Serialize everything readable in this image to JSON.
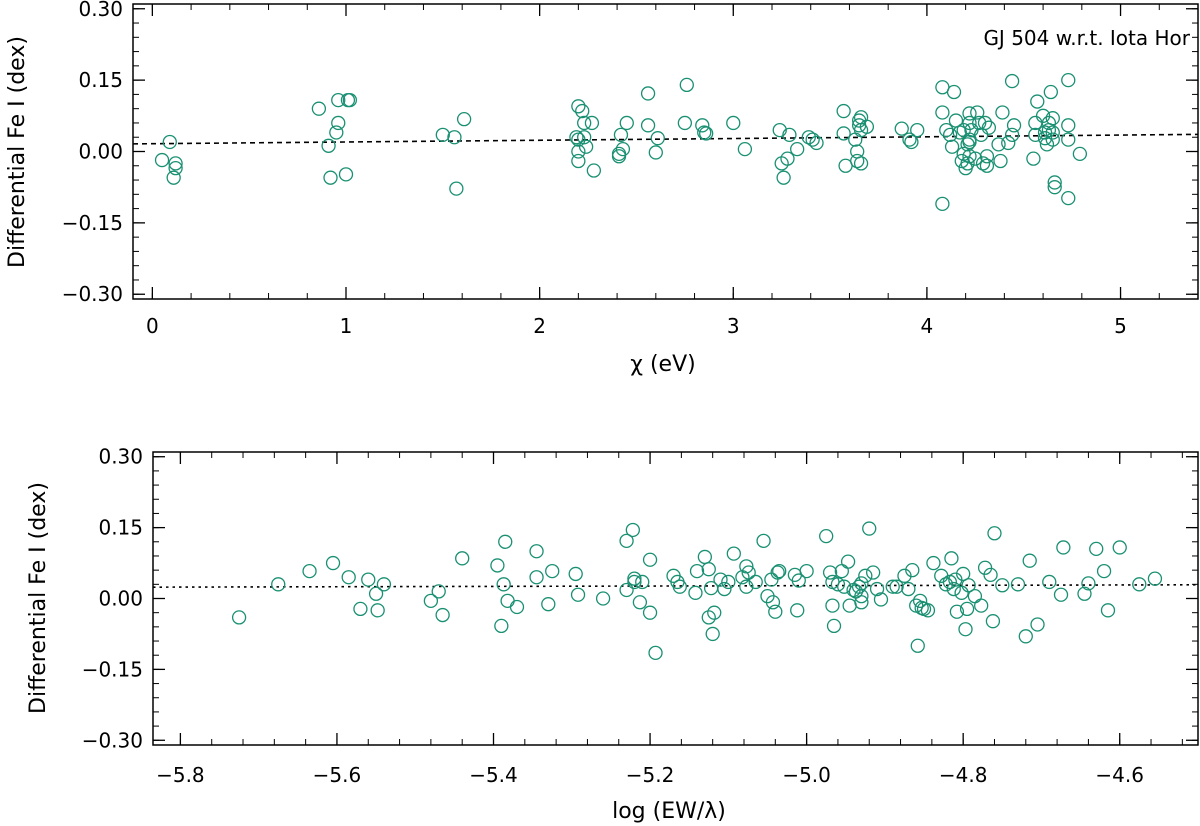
{
  "chart_data": [
    {
      "type": "scatter",
      "xlabel": "χ (eV)",
      "ylabel": "Differential Fe I (dex)",
      "annotation": "GJ 504 w.r.t. Iota Hor",
      "xlim": [
        -0.1,
        5.4
      ],
      "ylim": [
        -0.31,
        0.31
      ],
      "x_ticks": [
        "0",
        "1",
        "2",
        "3",
        "4",
        "5"
      ],
      "y_ticks": [
        "0.30",
        "0.15",
        "0.00",
        "−0.15",
        "−0.30"
      ],
      "marker_color": "#1a9073",
      "trend": {
        "style": "dashed",
        "x": [
          -0.1,
          5.4
        ],
        "y": [
          0.016,
          0.036
        ]
      },
      "series": [
        {
          "points": [
            [
              0.05,
              -0.018
            ],
            [
              0.09,
              0.02
            ],
            [
              0.11,
              -0.055
            ],
            [
              0.12,
              -0.025
            ],
            [
              0.12,
              -0.035
            ],
            [
              0.86,
              0.09
            ],
            [
              0.91,
              0.012
            ],
            [
              0.92,
              -0.055
            ],
            [
              0.95,
              0.04
            ],
            [
              0.96,
              0.06
            ],
            [
              0.96,
              0.108
            ],
            [
              1.0,
              -0.048
            ],
            [
              1.01,
              0.108
            ],
            [
              1.02,
              0.108
            ],
            [
              1.5,
              0.035
            ],
            [
              1.56,
              0.03
            ],
            [
              1.57,
              -0.078
            ],
            [
              1.61,
              0.068
            ],
            [
              2.19,
              0.03
            ],
            [
              2.2,
              0.025
            ],
            [
              2.2,
              0.0
            ],
            [
              2.2,
              -0.02
            ],
            [
              2.2,
              0.095
            ],
            [
              2.22,
              0.085
            ],
            [
              2.23,
              0.06
            ],
            [
              2.23,
              0.03
            ],
            [
              2.24,
              0.01
            ],
            [
              2.27,
              0.06
            ],
            [
              2.28,
              -0.04
            ],
            [
              2.41,
              -0.005
            ],
            [
              2.41,
              -0.01
            ],
            [
              2.42,
              0.035
            ],
            [
              2.43,
              0.005
            ],
            [
              2.45,
              0.06
            ],
            [
              2.56,
              0.055
            ],
            [
              2.56,
              0.122
            ],
            [
              2.6,
              -0.002
            ],
            [
              2.61,
              0.028
            ],
            [
              2.75,
              0.06
            ],
            [
              2.76,
              0.14
            ],
            [
              2.84,
              0.055
            ],
            [
              2.85,
              0.04
            ],
            [
              2.86,
              0.038
            ],
            [
              3.0,
              0.06
            ],
            [
              3.06,
              0.005
            ],
            [
              3.24,
              0.045
            ],
            [
              3.25,
              -0.025
            ],
            [
              3.26,
              -0.055
            ],
            [
              3.28,
              -0.015
            ],
            [
              3.29,
              0.035
            ],
            [
              3.33,
              0.005
            ],
            [
              3.39,
              0.03
            ],
            [
              3.41,
              0.025
            ],
            [
              3.43,
              0.018
            ],
            [
              3.57,
              0.085
            ],
            [
              3.57,
              0.038
            ],
            [
              3.58,
              -0.03
            ],
            [
              3.63,
              0.025
            ],
            [
              3.64,
              0.0
            ],
            [
              3.64,
              -0.02
            ],
            [
              3.65,
              0.065
            ],
            [
              3.65,
              0.055
            ],
            [
              3.66,
              0.072
            ],
            [
              3.66,
              0.045
            ],
            [
              3.66,
              -0.025
            ],
            [
              3.69,
              0.052
            ],
            [
              3.87,
              0.048
            ],
            [
              3.91,
              0.025
            ],
            [
              3.92,
              0.02
            ],
            [
              3.95,
              0.045
            ],
            [
              4.08,
              0.135
            ],
            [
              4.08,
              -0.11
            ],
            [
              4.08,
              0.082
            ],
            [
              4.1,
              0.045
            ],
            [
              4.12,
              0.035
            ],
            [
              4.13,
              0.01
            ],
            [
              4.14,
              0.125
            ],
            [
              4.15,
              0.065
            ],
            [
              4.17,
              0.04
            ],
            [
              4.18,
              -0.02
            ],
            [
              4.19,
              0.045
            ],
            [
              4.19,
              -0.005
            ],
            [
              4.2,
              -0.035
            ],
            [
              4.21,
              -0.025
            ],
            [
              4.21,
              0.015
            ],
            [
              4.22,
              0.08
            ],
            [
              4.22,
              0.06
            ],
            [
              4.22,
              0.025
            ],
            [
              4.22,
              0.02
            ],
            [
              4.22,
              -0.01
            ],
            [
              4.23,
              0.045
            ],
            [
              4.25,
              -0.015
            ],
            [
              4.26,
              0.082
            ],
            [
              4.27,
              0.06
            ],
            [
              4.28,
              0.035
            ],
            [
              4.29,
              -0.025
            ],
            [
              4.3,
              0.06
            ],
            [
              4.31,
              -0.01
            ],
            [
              4.31,
              -0.03
            ],
            [
              4.32,
              0.05
            ],
            [
              4.37,
              0.015
            ],
            [
              4.38,
              -0.02
            ],
            [
              4.39,
              0.082
            ],
            [
              4.42,
              0.018
            ],
            [
              4.44,
              0.035
            ],
            [
              4.44,
              0.148
            ],
            [
              4.45,
              0.055
            ],
            [
              4.55,
              -0.015
            ],
            [
              4.56,
              0.035
            ],
            [
              4.56,
              0.06
            ],
            [
              4.57,
              0.105
            ],
            [
              4.6,
              0.075
            ],
            [
              4.61,
              0.04
            ],
            [
              4.61,
              0.028
            ],
            [
              4.62,
              0.015
            ],
            [
              4.63,
              0.06
            ],
            [
              4.63,
              0.045
            ],
            [
              4.64,
              0.125
            ],
            [
              4.65,
              0.07
            ],
            [
              4.65,
              0.04
            ],
            [
              4.65,
              0.025
            ],
            [
              4.66,
              -0.065
            ],
            [
              4.66,
              -0.075
            ],
            [
              4.73,
              0.15
            ],
            [
              4.73,
              0.055
            ],
            [
              4.73,
              0.025
            ],
            [
              4.73,
              -0.098
            ],
            [
              4.79,
              -0.005
            ]
          ]
        }
      ]
    },
    {
      "type": "scatter",
      "xlabel": "log (EW/λ)",
      "ylabel": "Differential Fe I (dex)",
      "xlim": [
        -5.835,
        -4.5
      ],
      "ylim": [
        -0.31,
        0.31
      ],
      "x_ticks": [
        "−5.8",
        "−5.6",
        "−5.4",
        "−5.2",
        "−5.0",
        "−4.8",
        "−4.6"
      ],
      "y_ticks": [
        "0.30",
        "0.15",
        "0.00",
        "−0.15",
        "−0.30"
      ],
      "marker_color": "#1a9073",
      "trend": {
        "style": "dotted",
        "x": [
          -5.835,
          -4.5
        ],
        "y": [
          0.024,
          0.029
        ]
      },
      "series": [
        {
          "points": [
            [
              -5.725,
              -0.04
            ],
            [
              -5.675,
              0.03
            ],
            [
              -5.635,
              0.058
            ],
            [
              -5.605,
              0.075
            ],
            [
              -5.585,
              0.045
            ],
            [
              -5.57,
              -0.022
            ],
            [
              -5.56,
              0.04
            ],
            [
              -5.55,
              0.01
            ],
            [
              -5.548,
              -0.025
            ],
            [
              -5.54,
              0.03
            ],
            [
              -5.48,
              -0.005
            ],
            [
              -5.47,
              0.015
            ],
            [
              -5.465,
              -0.035
            ],
            [
              -5.44,
              0.085
            ],
            [
              -5.395,
              0.07
            ],
            [
              -5.39,
              -0.058
            ],
            [
              -5.385,
              0.12
            ],
            [
              -5.387,
              0.03
            ],
            [
              -5.382,
              -0.005
            ],
            [
              -5.37,
              -0.018
            ],
            [
              -5.345,
              0.1
            ],
            [
              -5.345,
              0.045
            ],
            [
              -5.33,
              -0.012
            ],
            [
              -5.325,
              0.058
            ],
            [
              -5.295,
              0.052
            ],
            [
              -5.292,
              0.008
            ],
            [
              -5.26,
              0.0
            ],
            [
              -5.23,
              0.122
            ],
            [
              -5.23,
              0.018
            ],
            [
              -5.222,
              0.145
            ],
            [
              -5.22,
              0.042
            ],
            [
              -5.22,
              0.035
            ],
            [
              -5.213,
              -0.008
            ],
            [
              -5.21,
              0.035
            ],
            [
              -5.2,
              0.082
            ],
            [
              -5.2,
              -0.03
            ],
            [
              -5.193,
              -0.115
            ],
            [
              -5.17,
              0.048
            ],
            [
              -5.165,
              0.035
            ],
            [
              -5.162,
              0.025
            ],
            [
              -5.142,
              0.012
            ],
            [
              -5.14,
              0.058
            ],
            [
              -5.13,
              0.088
            ],
            [
              -5.125,
              -0.04
            ],
            [
              -5.125,
              0.062
            ],
            [
              -5.122,
              0.022
            ],
            [
              -5.12,
              -0.075
            ],
            [
              -5.118,
              -0.03
            ],
            [
              -5.11,
              0.04
            ],
            [
              -5.105,
              0.02
            ],
            [
              -5.1,
              0.035
            ],
            [
              -5.093,
              0.095
            ],
            [
              -5.082,
              0.045
            ],
            [
              -5.077,
              0.068
            ],
            [
              -5.077,
              0.025
            ],
            [
              -5.074,
              0.055
            ],
            [
              -5.065,
              0.035
            ],
            [
              -5.055,
              0.122
            ],
            [
              -5.05,
              0.005
            ],
            [
              -5.045,
              0.04
            ],
            [
              -5.043,
              -0.008
            ],
            [
              -5.04,
              -0.028
            ],
            [
              -5.037,
              0.055
            ],
            [
              -5.035,
              0.058
            ],
            [
              -5.015,
              0.05
            ],
            [
              -5.012,
              -0.025
            ],
            [
              -5.01,
              0.038
            ],
            [
              -5.0,
              0.058
            ],
            [
              -4.975,
              0.132
            ],
            [
              -4.97,
              0.055
            ],
            [
              -4.967,
              0.035
            ],
            [
              -4.967,
              -0.015
            ],
            [
              -4.965,
              -0.058
            ],
            [
              -4.96,
              0.03
            ],
            [
              -4.955,
              0.058
            ],
            [
              -4.952,
              0.025
            ],
            [
              -4.947,
              0.078
            ],
            [
              -4.945,
              -0.015
            ],
            [
              -4.94,
              0.018
            ],
            [
              -4.937,
              0.015
            ],
            [
              -4.933,
              0.025
            ],
            [
              -4.93,
              0.032
            ],
            [
              -4.93,
              0.005
            ],
            [
              -4.93,
              -0.008
            ],
            [
              -4.925,
              0.048
            ],
            [
              -4.92,
              0.148
            ],
            [
              -4.915,
              0.055
            ],
            [
              -4.91,
              0.02
            ],
            [
              -4.905,
              -0.002
            ],
            [
              -4.89,
              0.025
            ],
            [
              -4.885,
              0.025
            ],
            [
              -4.875,
              0.048
            ],
            [
              -4.87,
              0.02
            ],
            [
              -4.865,
              0.06
            ],
            [
              -4.86,
              -0.015
            ],
            [
              -4.858,
              -0.1
            ],
            [
              -4.855,
              -0.005
            ],
            [
              -4.853,
              -0.02
            ],
            [
              -4.85,
              -0.022
            ],
            [
              -4.845,
              -0.025
            ],
            [
              -4.838,
              0.075
            ],
            [
              -4.828,
              0.048
            ],
            [
              -4.822,
              0.03
            ],
            [
              -4.817,
              0.035
            ],
            [
              -4.815,
              0.085
            ],
            [
              -4.812,
              0.02
            ],
            [
              -4.81,
              0.04
            ],
            [
              -4.808,
              -0.028
            ],
            [
              -4.802,
              0.012
            ],
            [
              -4.8,
              0.052
            ],
            [
              -4.797,
              -0.065
            ],
            [
              -4.795,
              -0.022
            ],
            [
              -4.793,
              0.028
            ],
            [
              -4.785,
              0.005
            ],
            [
              -4.777,
              -0.015
            ],
            [
              -4.772,
              0.065
            ],
            [
              -4.765,
              0.05
            ],
            [
              -4.762,
              -0.048
            ],
            [
              -4.76,
              0.138
            ],
            [
              -4.75,
              0.028
            ],
            [
              -4.73,
              0.03
            ],
            [
              -4.72,
              -0.08
            ],
            [
              -4.715,
              0.08
            ],
            [
              -4.705,
              -0.055
            ],
            [
              -4.69,
              0.035
            ],
            [
              -4.675,
              0.008
            ],
            [
              -4.672,
              0.108
            ],
            [
              -4.645,
              0.01
            ],
            [
              -4.64,
              0.032
            ],
            [
              -4.63,
              0.105
            ],
            [
              -4.62,
              0.058
            ],
            [
              -4.615,
              -0.025
            ],
            [
              -4.6,
              0.108
            ],
            [
              -4.575,
              0.03
            ],
            [
              -4.555,
              0.042
            ]
          ]
        }
      ]
    }
  ]
}
